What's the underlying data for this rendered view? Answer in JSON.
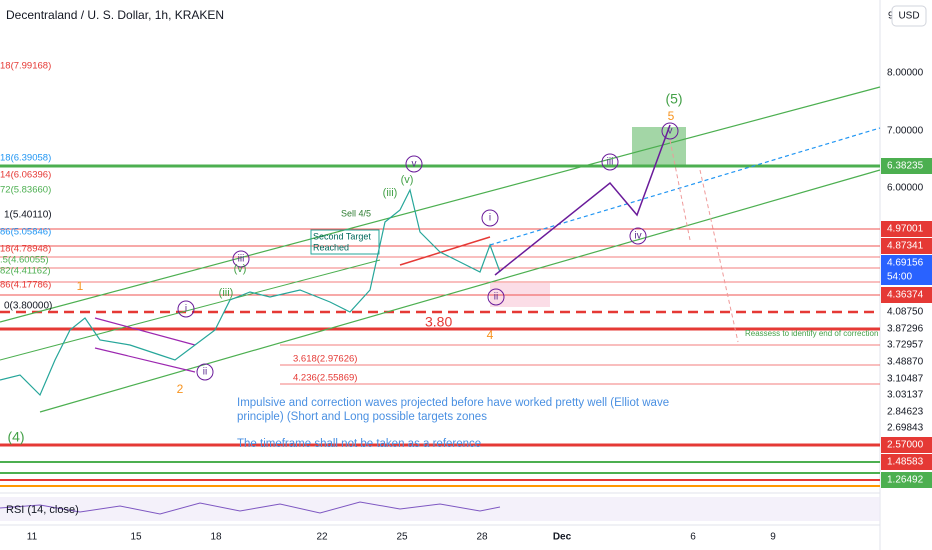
{
  "header": {
    "title": "Decentraland / U. S. Dollar, 1h, KRAKEN",
    "currency": "USD",
    "top_price": "9"
  },
  "price_axis": [
    "8.00000",
    "7.00000",
    "6.38235",
    "6.00000",
    "4.97001",
    "4.87341",
    "4.36374",
    "4.08750",
    "3.87296",
    "3.72957",
    "3.48870",
    "3.10487",
    "3.03137",
    "2.84623",
    "2.69843",
    "2.57000",
    "1.48583",
    "1.26492"
  ],
  "current_price": {
    "price": "4.69156",
    "countdown": "54:00"
  },
  "date_axis": [
    "11",
    "15",
    "18",
    "22",
    "25",
    "28",
    "Dec",
    "6",
    "9"
  ],
  "fib_labels": [
    "18(7.99168)",
    "18(6.39058)",
    "14(6.06396)",
    "72(5.83660)",
    "1(5.40110)",
    "86(5.05846)",
    "18(4.78948)",
    ".5(4.60055)",
    "82(4.41162)",
    "86(4.17786)",
    "0(3.80000)",
    "3.618(2.97626)",
    "4.236(2.55869)"
  ],
  "chart_labels": {
    "level": "3.80",
    "sell": "Sell 4/5",
    "target": "Second Target",
    "reached": "Reached",
    "reassess": "Reassess to identify end of correction"
  },
  "wave_labels": [
    "(5)",
    "5",
    "(4)",
    "1",
    "2",
    "4",
    "(iii)",
    "(v)",
    "(iii)",
    "(v)",
    "v",
    "iii",
    "iv",
    "i",
    "ii",
    "i",
    "iii",
    "ii",
    "v"
  ],
  "notes": [
    "Impulsive and correction waves projected before have worked pretty well (Elliot wave",
    "principle) (Short and Long possible targets zones",
    "The timeframe shall not be taken as a reference"
  ],
  "indicator": "RSI (14, close)"
}
